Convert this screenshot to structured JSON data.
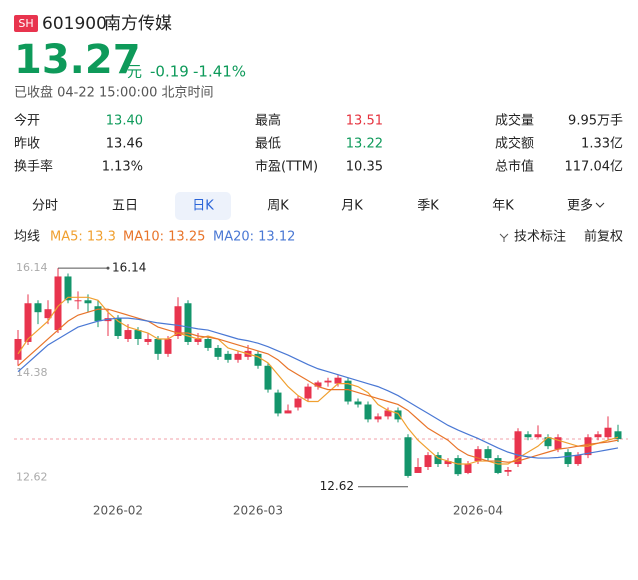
{
  "header": {
    "exchange": "SH",
    "code": "601900",
    "name": "南方传媒",
    "price": "13.27",
    "unit": "元",
    "change": "-0.19",
    "change_pct": "-1.41%",
    "status": "已收盘 04-22 15:00:00 北京时间"
  },
  "stats": [
    {
      "label": "今开",
      "value": "13.40",
      "color": "#0e9a5a"
    },
    {
      "label": "最高",
      "value": "13.51",
      "color": "#e5323e"
    },
    {
      "label": "成交量",
      "value": "9.95万手",
      "color": "#222222"
    },
    {
      "label": "昨收",
      "value": "13.46",
      "color": "#222222"
    },
    {
      "label": "最低",
      "value": "13.22",
      "color": "#0e9a5a"
    },
    {
      "label": "成交额",
      "value": "1.33亿",
      "color": "#222222"
    },
    {
      "label": "换手率",
      "value": "1.13%",
      "color": "#222222"
    },
    {
      "label": "市盈(TTM)",
      "value": "10.35",
      "color": "#222222"
    },
    {
      "label": "总市值",
      "value": "117.04亿",
      "color": "#222222"
    }
  ],
  "tabs": {
    "items": [
      "分时",
      "五日",
      "日K",
      "周K",
      "月K",
      "季K",
      "年K",
      "更多"
    ],
    "active": 2
  },
  "chart_data": {
    "type": "candlestick",
    "legend_title": "均线",
    "tools": [
      "技术标注",
      "前复权"
    ],
    "categories": [
      null,
      null,
      null,
      null,
      null,
      null,
      null,
      null,
      null,
      null,
      "2026-02",
      null,
      null,
      null,
      null,
      null,
      null,
      null,
      null,
      null,
      null,
      null,
      null,
      null,
      "2026-03",
      null,
      null,
      null,
      null,
      null,
      null,
      null,
      null,
      null,
      null,
      null,
      null,
      null,
      null,
      null,
      null,
      null,
      null,
      null,
      null,
      null,
      "2026-04",
      null,
      null,
      null,
      null,
      null,
      null,
      null,
      null,
      null,
      null,
      null,
      null,
      null,
      null
    ],
    "ohlc": [
      [
        14.6,
        15.1,
        14.5,
        14.95
      ],
      [
        14.9,
        15.7,
        14.85,
        15.55
      ],
      [
        15.55,
        15.6,
        15.2,
        15.4
      ],
      [
        15.3,
        15.6,
        15.2,
        15.45
      ],
      [
        15.1,
        16.14,
        15.05,
        16.0
      ],
      [
        16.0,
        16.05,
        15.55,
        15.6
      ],
      [
        15.6,
        15.75,
        15.45,
        15.6
      ],
      [
        15.6,
        15.7,
        15.4,
        15.55
      ],
      [
        15.5,
        15.6,
        15.15,
        15.25
      ],
      [
        15.25,
        15.45,
        15.0,
        15.3
      ],
      [
        15.3,
        15.35,
        14.95,
        15.0
      ],
      [
        14.95,
        15.2,
        14.9,
        15.1
      ],
      [
        15.1,
        15.15,
        14.85,
        14.95
      ],
      [
        14.9,
        15.05,
        14.85,
        14.95
      ],
      [
        14.95,
        15.0,
        14.6,
        14.7
      ],
      [
        14.7,
        15.0,
        14.65,
        14.95
      ],
      [
        15.0,
        15.65,
        14.95,
        15.5
      ],
      [
        15.55,
        15.6,
        14.85,
        14.9
      ],
      [
        14.9,
        15.05,
        14.85,
        14.95
      ],
      [
        14.95,
        15.0,
        14.75,
        14.8
      ],
      [
        14.8,
        14.85,
        14.6,
        14.65
      ],
      [
        14.7,
        14.75,
        14.55,
        14.6
      ],
      [
        14.6,
        14.75,
        14.55,
        14.7
      ],
      [
        14.65,
        14.85,
        14.6,
        14.75
      ],
      [
        14.7,
        14.75,
        14.45,
        14.5
      ],
      [
        14.5,
        14.55,
        14.05,
        14.1
      ],
      [
        14.05,
        14.1,
        13.65,
        13.7
      ],
      [
        13.7,
        13.85,
        13.7,
        13.75
      ],
      [
        13.8,
        14.0,
        13.75,
        13.95
      ],
      [
        13.95,
        14.2,
        13.9,
        14.15
      ],
      [
        14.15,
        14.25,
        14.1,
        14.22
      ],
      [
        14.22,
        14.3,
        14.15,
        14.25
      ],
      [
        14.2,
        14.35,
        14.15,
        14.3
      ],
      [
        14.25,
        14.3,
        13.85,
        13.9
      ],
      [
        13.9,
        13.95,
        13.8,
        13.85
      ],
      [
        13.85,
        13.9,
        13.55,
        13.6
      ],
      [
        13.6,
        13.7,
        13.55,
        13.65
      ],
      [
        13.65,
        13.8,
        13.6,
        13.75
      ],
      [
        13.75,
        13.8,
        13.55,
        13.6
      ],
      [
        13.3,
        13.35,
        12.62,
        12.65
      ],
      [
        12.7,
        12.95,
        12.7,
        12.8
      ],
      [
        12.8,
        13.05,
        12.75,
        13.0
      ],
      [
        13.0,
        13.05,
        12.8,
        12.85
      ],
      [
        12.85,
        12.95,
        12.8,
        12.9
      ],
      [
        12.95,
        13.0,
        12.65,
        12.68
      ],
      [
        12.7,
        12.9,
        12.68,
        12.85
      ],
      [
        12.9,
        13.15,
        12.85,
        13.1
      ],
      [
        13.1,
        13.15,
        12.9,
        12.95
      ],
      [
        12.95,
        13.0,
        12.68,
        12.7
      ],
      [
        12.72,
        12.8,
        12.65,
        12.75
      ],
      [
        12.85,
        13.45,
        12.8,
        13.4
      ],
      [
        13.35,
        13.4,
        13.25,
        13.3
      ],
      [
        13.3,
        13.5,
        13.28,
        13.35
      ],
      [
        13.3,
        13.35,
        13.1,
        13.15
      ],
      [
        13.1,
        13.35,
        13.05,
        13.3
      ],
      [
        13.05,
        13.1,
        12.8,
        12.85
      ],
      [
        12.85,
        13.05,
        12.82,
        13.0
      ],
      [
        13.0,
        13.35,
        12.95,
        13.3
      ],
      [
        13.3,
        13.4,
        13.25,
        13.35
      ],
      [
        13.3,
        13.65,
        13.25,
        13.46
      ],
      [
        13.4,
        13.51,
        13.22,
        13.27
      ]
    ],
    "up_color": "#e8344e",
    "down_color": "#14956b",
    "series": [
      {
        "name": "MA5: 13.3",
        "color": "#f0a030",
        "values": [
          14.7,
          14.95,
          15.1,
          15.25,
          15.5,
          15.65,
          15.65,
          15.65,
          15.6,
          15.4,
          15.25,
          15.15,
          15.1,
          15.05,
          14.95,
          14.95,
          15.05,
          15.0,
          14.95,
          15.0,
          14.95,
          14.8,
          14.75,
          14.7,
          14.65,
          14.55,
          14.35,
          14.15,
          14.0,
          13.9,
          13.9,
          14.05,
          14.2,
          14.2,
          14.15,
          14.05,
          13.85,
          13.75,
          13.7,
          13.45,
          13.25,
          13.1,
          12.95,
          12.9,
          12.85,
          12.85,
          12.9,
          12.9,
          12.85,
          12.85,
          12.95,
          13.05,
          13.15,
          13.3,
          13.25,
          13.2,
          13.15,
          13.15,
          13.2,
          13.25,
          13.3
        ]
      },
      {
        "name": "MA10: 13.25",
        "color": "#e8742a",
        "values": [
          14.5,
          14.65,
          14.8,
          14.95,
          15.1,
          15.25,
          15.35,
          15.4,
          15.45,
          15.45,
          15.4,
          15.35,
          15.3,
          15.25,
          15.15,
          15.1,
          15.05,
          15.05,
          15.0,
          14.98,
          14.95,
          14.9,
          14.85,
          14.8,
          14.75,
          14.7,
          14.6,
          14.45,
          14.35,
          14.25,
          14.15,
          14.1,
          14.1,
          14.1,
          14.05,
          14.0,
          13.95,
          13.9,
          13.85,
          13.75,
          13.6,
          13.45,
          13.35,
          13.25,
          13.1,
          13.0,
          12.95,
          12.9,
          12.9,
          12.88,
          12.9,
          12.95,
          13.0,
          13.05,
          13.1,
          13.12,
          13.15,
          13.18,
          13.2,
          13.22,
          13.25
        ]
      },
      {
        "name": "MA20: 13.12",
        "color": "#4a78d4",
        "values": [
          14.4,
          14.55,
          14.7,
          14.85,
          14.95,
          15.05,
          15.15,
          15.2,
          15.25,
          15.28,
          15.3,
          15.3,
          15.28,
          15.25,
          15.22,
          15.2,
          15.18,
          15.15,
          15.12,
          15.1,
          15.05,
          15.0,
          14.95,
          14.92,
          14.88,
          14.82,
          14.75,
          14.68,
          14.6,
          14.52,
          14.45,
          14.4,
          14.35,
          14.3,
          14.25,
          14.2,
          14.15,
          14.08,
          14.0,
          13.9,
          13.8,
          13.7,
          13.6,
          13.5,
          13.42,
          13.35,
          13.28,
          13.2,
          13.12,
          13.05,
          13.0,
          12.97,
          12.95,
          12.95,
          12.96,
          12.98,
          13.0,
          13.03,
          13.06,
          13.09,
          13.12
        ]
      }
    ],
    "ylim": [
      12.33,
      16.31
    ],
    "yticks": [
      16.14,
      14.38,
      12.62
    ],
    "max_point": [
      4,
      1
    ],
    "min_point": [
      39,
      2
    ],
    "last_line": true
  }
}
